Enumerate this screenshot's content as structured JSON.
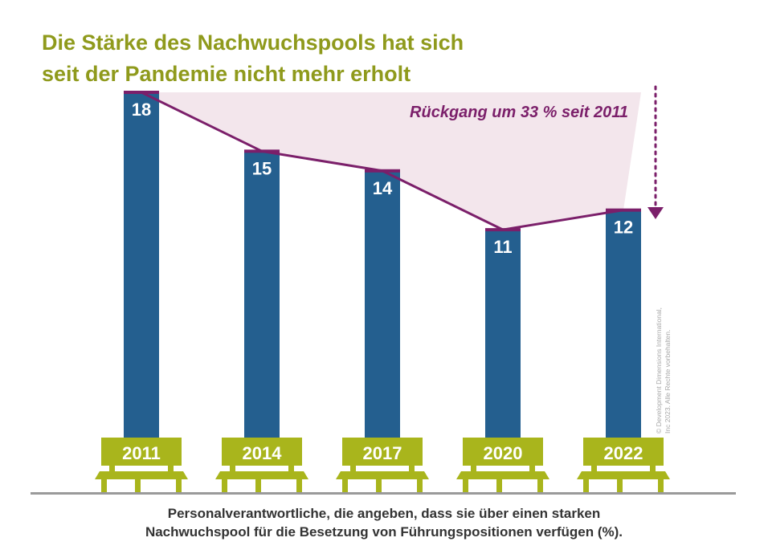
{
  "title_lines": [
    "Die Stärke des Nachwuchspools hat sich",
    "seit der Pandemie nicht mehr erholt"
  ],
  "annotation": "Rückgang um 33 % seit 2011",
  "caption_lines": [
    "Personalverantwortliche, die angeben, dass sie über einen starken",
    "Nachwuchspool für die Besetzung von Führungspositionen verfügen (%)."
  ],
  "copyright_lines": [
    "© Development Dimensions International,",
    "Inc 2023. Alle Rechte vorbehalten."
  ],
  "colors": {
    "title": "#8f9a1c",
    "bar": "#245f8f",
    "line": "#7b1f6a",
    "shade": "#f3e6ec",
    "bench": "#a9b51c",
    "floor": "#9a9a9a"
  },
  "chart_data": {
    "type": "bar",
    "categories": [
      "2011",
      "2014",
      "2017",
      "2020",
      "2022"
    ],
    "values": [
      18,
      15,
      14,
      11,
      12
    ],
    "data_labels": [
      "18",
      "15",
      "14",
      "11",
      "12"
    ],
    "ylim": [
      0,
      18
    ],
    "grid": false,
    "overlay": "line connecting bar tops with shaded area up to the 2011 level",
    "annotation": "Rückgang um 33 % seit 2011"
  }
}
